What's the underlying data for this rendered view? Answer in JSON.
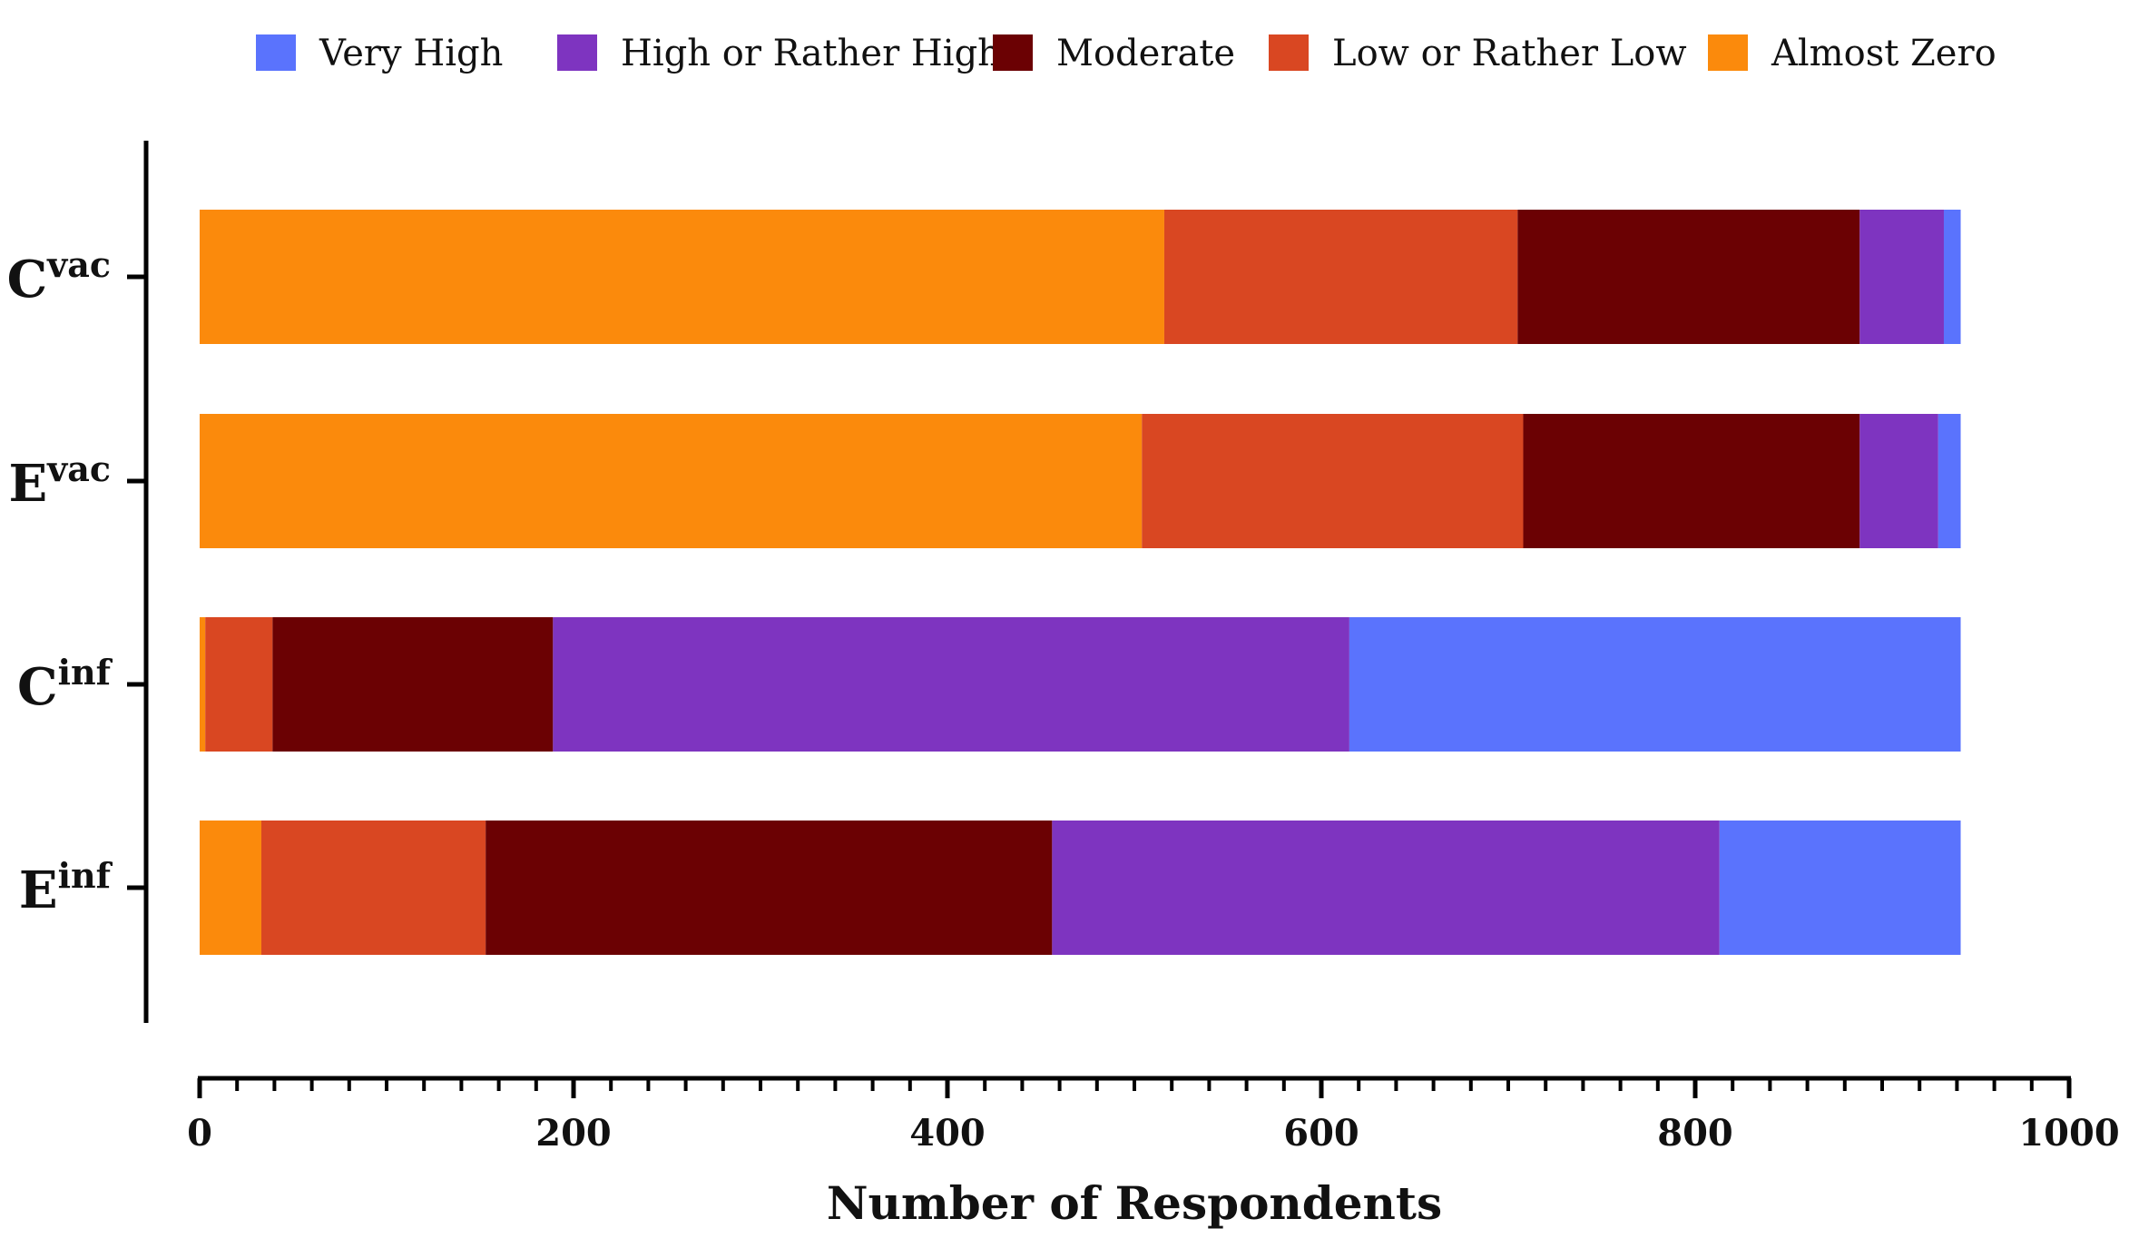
{
  "chart_data": {
    "type": "bar",
    "orientation": "horizontal",
    "stacked": true,
    "title": "",
    "xlabel": "Number of Respondents",
    "ylabel": "",
    "xlim": [
      0,
      1000
    ],
    "xticks": [
      0,
      200,
      400,
      600,
      800,
      1000
    ],
    "grid": false,
    "legend_position": "top",
    "categories": [
      {
        "base": "C",
        "sup": "vac"
      },
      {
        "base": "E",
        "sup": "vac"
      },
      {
        "base": "C",
        "sup": "inf"
      },
      {
        "base": "E",
        "sup": "inf"
      }
    ],
    "series": [
      {
        "name": "Almost Zero",
        "color": "#fb8a0c",
        "values": [
          516,
          504,
          3,
          33
        ]
      },
      {
        "name": "Low or Rather Low",
        "color": "#d94722",
        "values": [
          189,
          204,
          36,
          120
        ]
      },
      {
        "name": "Moderate",
        "color": "#6b0103",
        "values": [
          183,
          180,
          150,
          303
        ]
      },
      {
        "name": "High or Rather High",
        "color": "#7e34c0",
        "values": [
          45,
          42,
          426,
          357
        ]
      },
      {
        "name": "Very High",
        "color": "#5a73fd",
        "values": [
          9,
          12,
          327,
          129
        ]
      }
    ],
    "legend_order": [
      "Very High",
      "High or Rather High",
      "Moderate",
      "Low or Rather Low",
      "Almost Zero"
    ]
  }
}
